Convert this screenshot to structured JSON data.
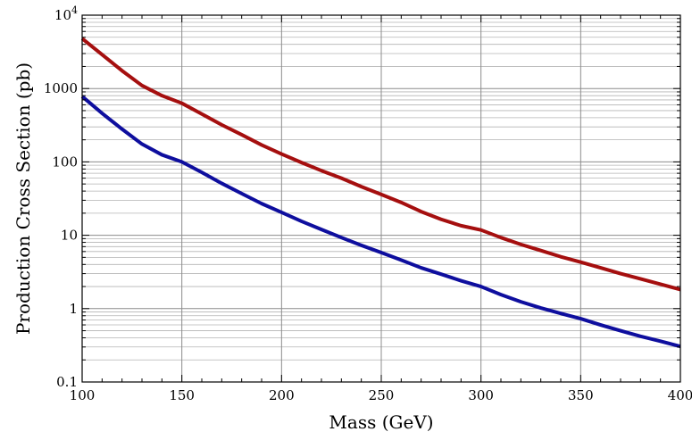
{
  "chart_data": {
    "type": "line",
    "xlabel": "Mass (GeV)",
    "ylabel": "Production Cross Section (pb)",
    "xlim": [
      100,
      400
    ],
    "ylim": [
      0.1,
      10000
    ],
    "yscale": "log",
    "grid": true,
    "x_ticks": [
      "100",
      "150",
      "200",
      "250",
      "300",
      "350",
      "400"
    ],
    "y_ticks": [
      {
        "value": 0.1,
        "base": "0.1",
        "sup": ""
      },
      {
        "value": 1,
        "base": "1",
        "sup": ""
      },
      {
        "value": 10,
        "base": "10",
        "sup": ""
      },
      {
        "value": 100,
        "base": "100",
        "sup": ""
      },
      {
        "value": 1000,
        "base": "1000",
        "sup": ""
      },
      {
        "value": 10000,
        "base": "10",
        "sup": "4"
      }
    ],
    "series": [
      {
        "color": "#a50f0f",
        "x": [
          100,
          110,
          120,
          130,
          140,
          150,
          160,
          170,
          180,
          190,
          200,
          210,
          220,
          230,
          240,
          250,
          260,
          270,
          280,
          290,
          300,
          310,
          320,
          330,
          340,
          350,
          360,
          370,
          380,
          390,
          400
        ],
        "y": [
          4800,
          2900,
          1750,
          1100,
          800,
          630,
          450,
          320,
          235,
          170,
          128,
          98,
          76,
          60,
          46,
          36,
          28,
          21,
          16.5,
          13.5,
          11.8,
          9.3,
          7.5,
          6.2,
          5.1,
          4.3,
          3.6,
          3.0,
          2.55,
          2.15,
          1.82
        ]
      },
      {
        "color": "#0e0e9e",
        "x": [
          100,
          110,
          120,
          130,
          140,
          150,
          160,
          170,
          180,
          190,
          200,
          210,
          220,
          230,
          240,
          250,
          260,
          270,
          280,
          290,
          300,
          310,
          320,
          330,
          340,
          350,
          360,
          370,
          380,
          390,
          400
        ],
        "y": [
          780,
          460,
          280,
          175,
          125,
          100,
          72,
          51,
          37,
          27,
          20.5,
          15.5,
          12,
          9.3,
          7.3,
          5.8,
          4.6,
          3.6,
          2.95,
          2.4,
          2.0,
          1.55,
          1.24,
          1.02,
          0.86,
          0.73,
          0.6,
          0.5,
          0.42,
          0.36,
          0.305
        ]
      }
    ]
  }
}
